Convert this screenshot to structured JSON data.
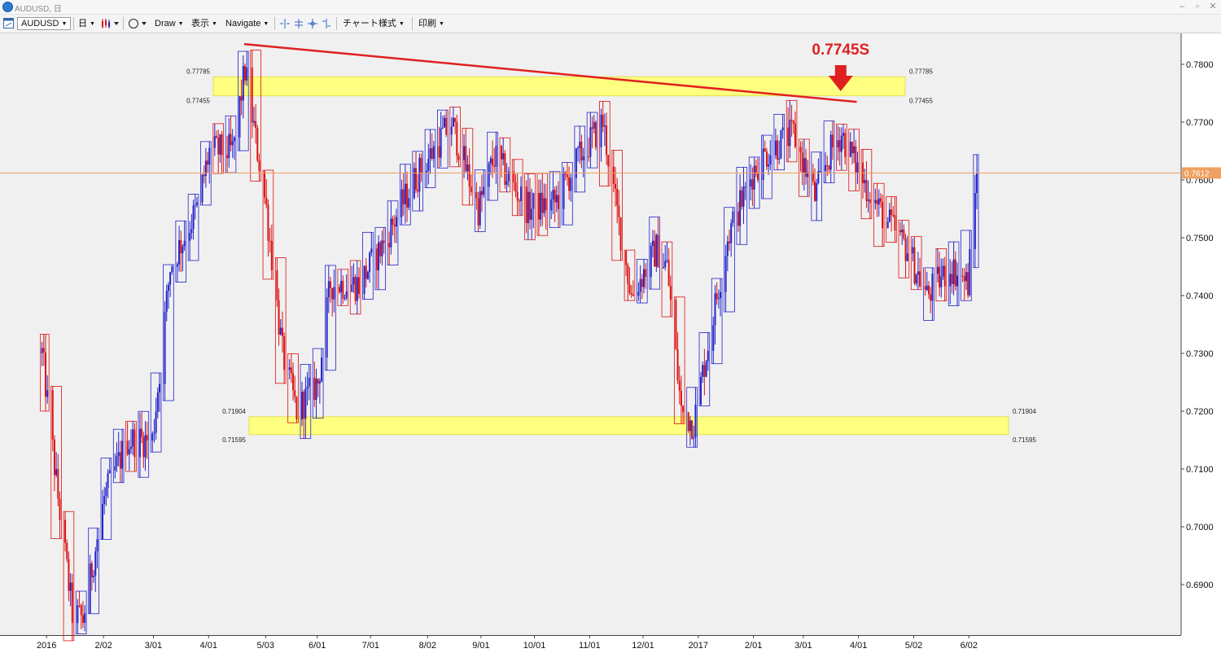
{
  "window": {
    "title": "AUDUSD, 日"
  },
  "toolbar": {
    "symbol": "AUDUSD",
    "timeframe": "日",
    "draw": "Draw",
    "view": "表示",
    "navigate": "Navigate",
    "chart_style": "チャート様式",
    "print": "印刷"
  },
  "colors": {
    "bull": "#2222cc",
    "bear": "#dd1111",
    "zone": "#ffff80",
    "trendline": "#e02020",
    "price_line": "#f0a060",
    "price_tag": "#f0a060",
    "background": "#f0f0f0"
  },
  "annotation": {
    "text": "0.7745S",
    "price": 0.7745
  },
  "zones": [
    {
      "top": 0.77785,
      "bottom": 0.77455,
      "top_label": "0.77785",
      "bottom_label": "0.77455"
    },
    {
      "top": 0.71904,
      "bottom": 0.71595,
      "top_label": "0.71904",
      "bottom_label": "0.71595"
    }
  ],
  "current_price": {
    "label": "0.7612",
    "value": 0.7612
  },
  "chart_data": {
    "type": "candlestick",
    "symbol": "AUDUSD",
    "timeframe": "日",
    "ylim": [
      0.682,
      0.785
    ],
    "y_ticks": [
      "0.7800",
      "0.7700",
      "0.7600",
      "0.7500",
      "0.7400",
      "0.7300",
      "0.7200",
      "0.7100",
      "0.7000",
      "0.6900"
    ],
    "x_ticks": [
      "2016",
      "2/02",
      "3/01",
      "4/01",
      "5/03",
      "6/01",
      "7/01",
      "8/02",
      "9/01",
      "10/01",
      "11/01",
      "12/01",
      "2017",
      "2/01",
      "3/01",
      "4/01",
      "5/02",
      "6/02"
    ],
    "trendline": {
      "start": {
        "date": "2016-04-21",
        "price": 0.7835
      },
      "end": {
        "date": "2017-03-31",
        "price": 0.7735
      }
    },
    "path_anchors": [
      [
        "2015-12-29",
        0.73
      ],
      [
        "2016-01-07",
        0.705
      ],
      [
        "2016-01-15",
        0.685
      ],
      [
        "2016-01-21",
        0.684
      ],
      [
        "2016-02-02",
        0.705
      ],
      [
        "2016-02-15",
        0.715
      ],
      [
        "2016-02-29",
        0.715
      ],
      [
        "2016-03-10",
        0.745
      ],
      [
        "2016-03-25",
        0.755
      ],
      [
        "2016-04-01",
        0.765
      ],
      [
        "2016-04-14",
        0.765
      ],
      [
        "2016-04-21",
        0.779
      ],
      [
        "2016-05-03",
        0.755
      ],
      [
        "2016-05-12",
        0.73
      ],
      [
        "2016-05-20",
        0.72
      ],
      [
        "2016-06-01",
        0.725
      ],
      [
        "2016-06-08",
        0.742
      ],
      [
        "2016-06-24",
        0.742
      ],
      [
        "2016-07-06",
        0.748
      ],
      [
        "2016-07-25",
        0.76
      ],
      [
        "2016-08-15",
        0.77
      ],
      [
        "2016-08-30",
        0.755
      ],
      [
        "2016-09-08",
        0.764
      ],
      [
        "2016-09-27",
        0.755
      ],
      [
        "2016-10-12",
        0.756
      ],
      [
        "2016-10-26",
        0.764
      ],
      [
        "2016-11-08",
        0.77
      ],
      [
        "2016-11-15",
        0.756
      ],
      [
        "2016-11-24",
        0.74
      ],
      [
        "2016-12-08",
        0.748
      ],
      [
        "2016-12-14",
        0.745
      ],
      [
        "2016-12-22",
        0.72
      ],
      [
        "2016-12-29",
        0.718
      ],
      [
        "2017-01-05",
        0.73
      ],
      [
        "2017-01-17",
        0.75
      ],
      [
        "2017-02-01",
        0.762
      ],
      [
        "2017-02-09",
        0.765
      ],
      [
        "2017-02-23",
        0.768
      ],
      [
        "2017-03-07",
        0.757
      ],
      [
        "2017-03-16",
        0.765
      ],
      [
        "2017-03-22",
        0.768
      ],
      [
        "2017-04-03",
        0.76
      ],
      [
        "2017-04-14",
        0.754
      ],
      [
        "2017-04-28",
        0.748
      ],
      [
        "2017-05-09",
        0.74
      ],
      [
        "2017-05-22",
        0.745
      ],
      [
        "2017-06-01",
        0.742
      ],
      [
        "2017-06-06",
        0.7612
      ]
    ]
  }
}
